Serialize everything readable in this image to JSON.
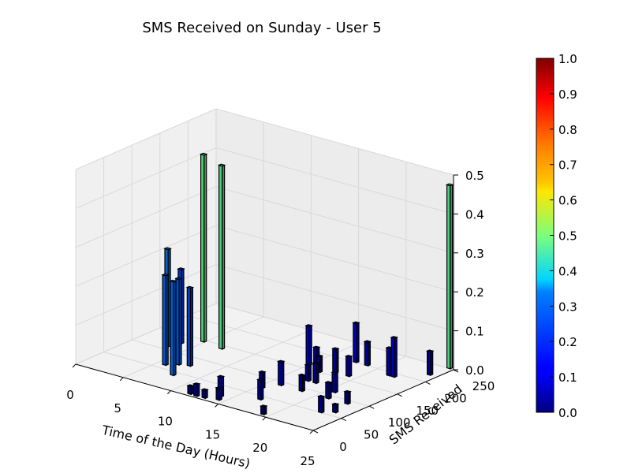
{
  "chart_data": {
    "type": "bar3d",
    "title": "SMS Received on Sunday - User 5",
    "xlabel": "Time of the Day (Hours)",
    "ylabel": "SMS Received",
    "zlabel": "",
    "xlim": [
      0,
      25
    ],
    "ylim": [
      0,
      250
    ],
    "zlim": [
      0,
      0.5
    ],
    "x_ticks": [
      "0",
      "5",
      "10",
      "15",
      "20",
      "25"
    ],
    "y_ticks": [
      "0",
      "50",
      "100",
      "150",
      "200",
      "250"
    ],
    "z_ticks": [
      "0.0",
      "0.1",
      "0.2",
      "0.3",
      "0.4",
      "0.5"
    ],
    "grid": true,
    "colorbar": {
      "colormap": "jet",
      "range": [
        0,
        1
      ],
      "ticks": [
        "0.0",
        "0.1",
        "0.2",
        "0.3",
        "0.4",
        "0.5",
        "0.6",
        "0.7",
        "0.8",
        "0.9",
        "1.0"
      ]
    },
    "bars": [
      {
        "x": 3.0,
        "y": 108,
        "z": 0.25
      },
      {
        "x": 3.4,
        "y": 125,
        "z": 0.19
      },
      {
        "x": 4.6,
        "y": 145,
        "z": 0.48
      },
      {
        "x": 5.6,
        "y": 60,
        "z": 0.23
      },
      {
        "x": 6.4,
        "y": 70,
        "z": 0.22
      },
      {
        "x": 6.8,
        "y": 140,
        "z": 0.47
      },
      {
        "x": 7.3,
        "y": 75,
        "z": 0.2
      },
      {
        "x": 7.6,
        "y": 40,
        "z": 0.24
      },
      {
        "x": 11.5,
        "y": 5,
        "z": 0.02
      },
      {
        "x": 12.2,
        "y": 4,
        "z": 0.03
      },
      {
        "x": 13.0,
        "y": 5,
        "z": 0.02
      },
      {
        "x": 13.8,
        "y": 20,
        "z": 0.05
      },
      {
        "x": 14.2,
        "y": 10,
        "z": 0.03
      },
      {
        "x": 14.8,
        "y": 160,
        "z": 0.1
      },
      {
        "x": 15.2,
        "y": 70,
        "z": 0.04
      },
      {
        "x": 15.6,
        "y": 160,
        "z": 0.05
      },
      {
        "x": 16.0,
        "y": 90,
        "z": 0.06
      },
      {
        "x": 16.5,
        "y": 150,
        "z": 0.04
      },
      {
        "x": 16.8,
        "y": 40,
        "z": 0.05
      },
      {
        "x": 17.1,
        "y": 120,
        "z": 0.04
      },
      {
        "x": 17.4,
        "y": 200,
        "z": 0.1
      },
      {
        "x": 17.6,
        "y": 160,
        "z": 0.06
      },
      {
        "x": 17.9,
        "y": 120,
        "z": 0.05
      },
      {
        "x": 18.2,
        "y": 90,
        "z": 0.04
      },
      {
        "x": 18.6,
        "y": 200,
        "z": 0.06
      },
      {
        "x": 19.0,
        "y": 160,
        "z": 0.05
      },
      {
        "x": 19.2,
        "y": 5,
        "z": 0.02
      },
      {
        "x": 20.5,
        "y": 110,
        "z": 0.05
      },
      {
        "x": 21.0,
        "y": 90,
        "z": 0.04
      },
      {
        "x": 21.5,
        "y": 190,
        "z": 0.07
      },
      {
        "x": 22.0,
        "y": 190,
        "z": 0.1
      },
      {
        "x": 22.6,
        "y": 50,
        "z": 0.04
      },
      {
        "x": 23.0,
        "y": 90,
        "z": 0.03
      },
      {
        "x": 23.5,
        "y": 60,
        "z": 0.02
      },
      {
        "x": 24.0,
        "y": 220,
        "z": 0.06
      },
      {
        "x": 24.3,
        "y": 250,
        "z": 0.47
      }
    ]
  }
}
